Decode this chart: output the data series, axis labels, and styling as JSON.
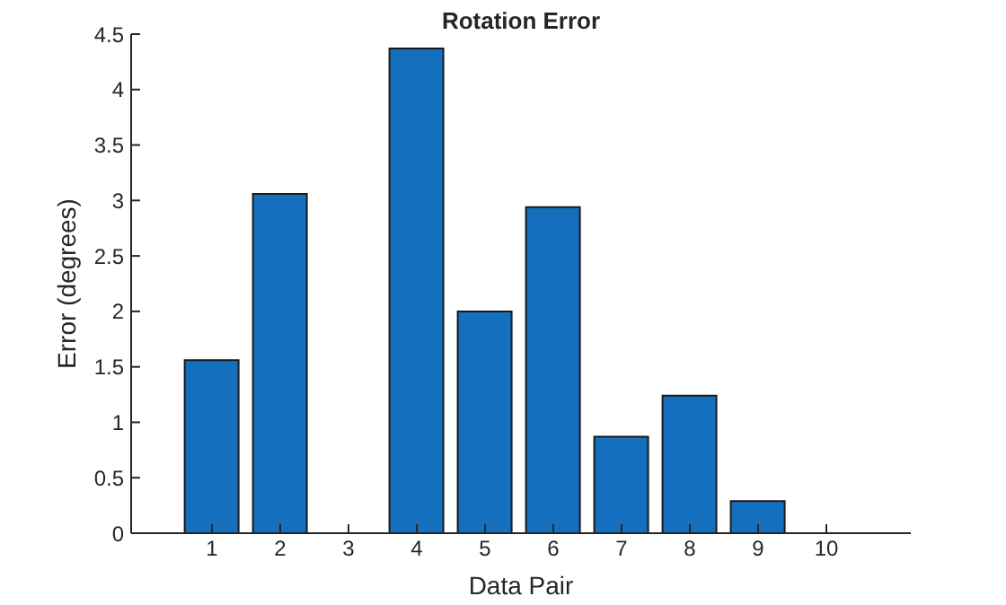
{
  "chart_data": {
    "type": "bar",
    "title": "Rotation Error",
    "xlabel": "Data Pair",
    "ylabel": "Error (degrees)",
    "categories": [
      "1",
      "2",
      "3",
      "4",
      "5",
      "6",
      "7",
      "8",
      "9",
      "10"
    ],
    "values": [
      1.56,
      3.06,
      0,
      4.37,
      2.0,
      2.94,
      0.87,
      1.24,
      0.29,
      0
    ],
    "color": "#1470bf",
    "ylim": [
      0,
      4.5
    ],
    "yticks": [
      0,
      0.5,
      1,
      1.5,
      2,
      2.5,
      3,
      3.5,
      4,
      4.5
    ],
    "grid": false
  }
}
